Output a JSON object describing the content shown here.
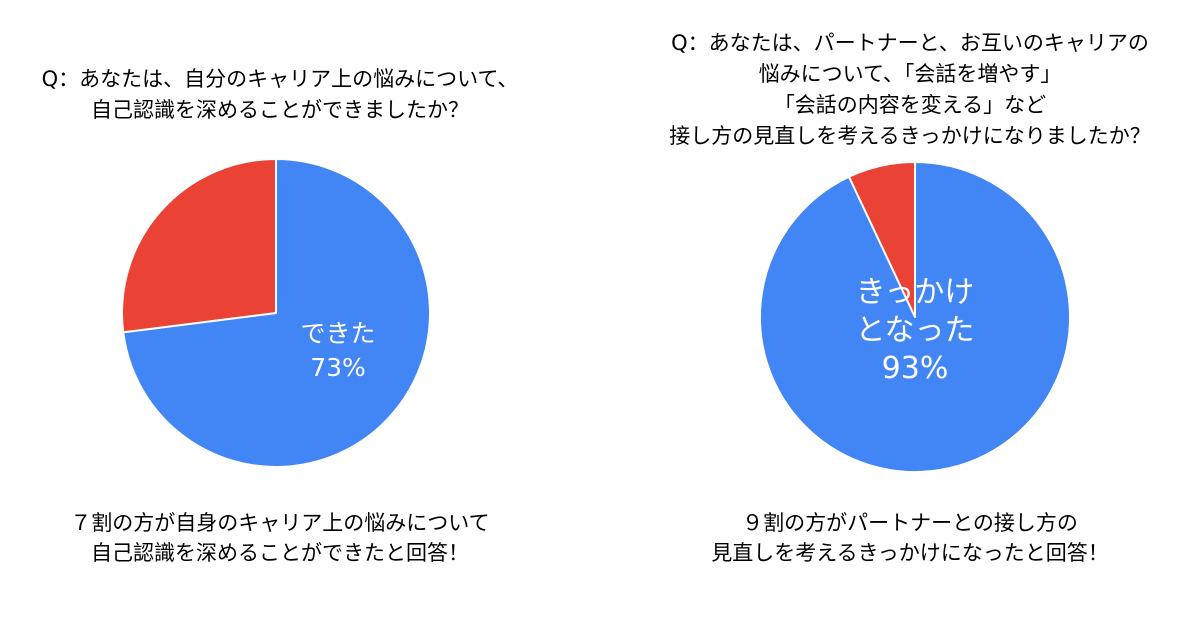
{
  "chart_data": [
    {
      "type": "pie",
      "title_lines": [
        "Q：あなたは、自分のキャリア上の悩みについて、",
        "自己認識を深めることができましたか？"
      ],
      "slices": [
        {
          "label_lines": [
            "できた",
            "73%"
          ],
          "value": 73,
          "color": "#4285f4"
        },
        {
          "label_lines": [],
          "value": 27,
          "color": "#ea4335"
        }
      ],
      "caption_lines": [
        "７割の方が自身のキャリア上の悩みについて",
        "自己認識を深めることができたと回答！"
      ]
    },
    {
      "type": "pie",
      "title_lines": [
        "Q：あなたは、パートナーと、お互いのキャリアの",
        "悩みについて、「会話を増やす」",
        "「会話の内容を変える」など",
        "接し方の見直しを考えるきっかけになりましたか？"
      ],
      "slices": [
        {
          "label_lines": [
            "きっかけ",
            "となった",
            "93%"
          ],
          "value": 93,
          "color": "#4285f4"
        },
        {
          "label_lines": [],
          "value": 7,
          "color": "#ea4335"
        }
      ],
      "caption_lines": [
        "９割の方がパートナーとの接し方の",
        "見直しを考えるきっかけになったと回答！"
      ]
    }
  ]
}
